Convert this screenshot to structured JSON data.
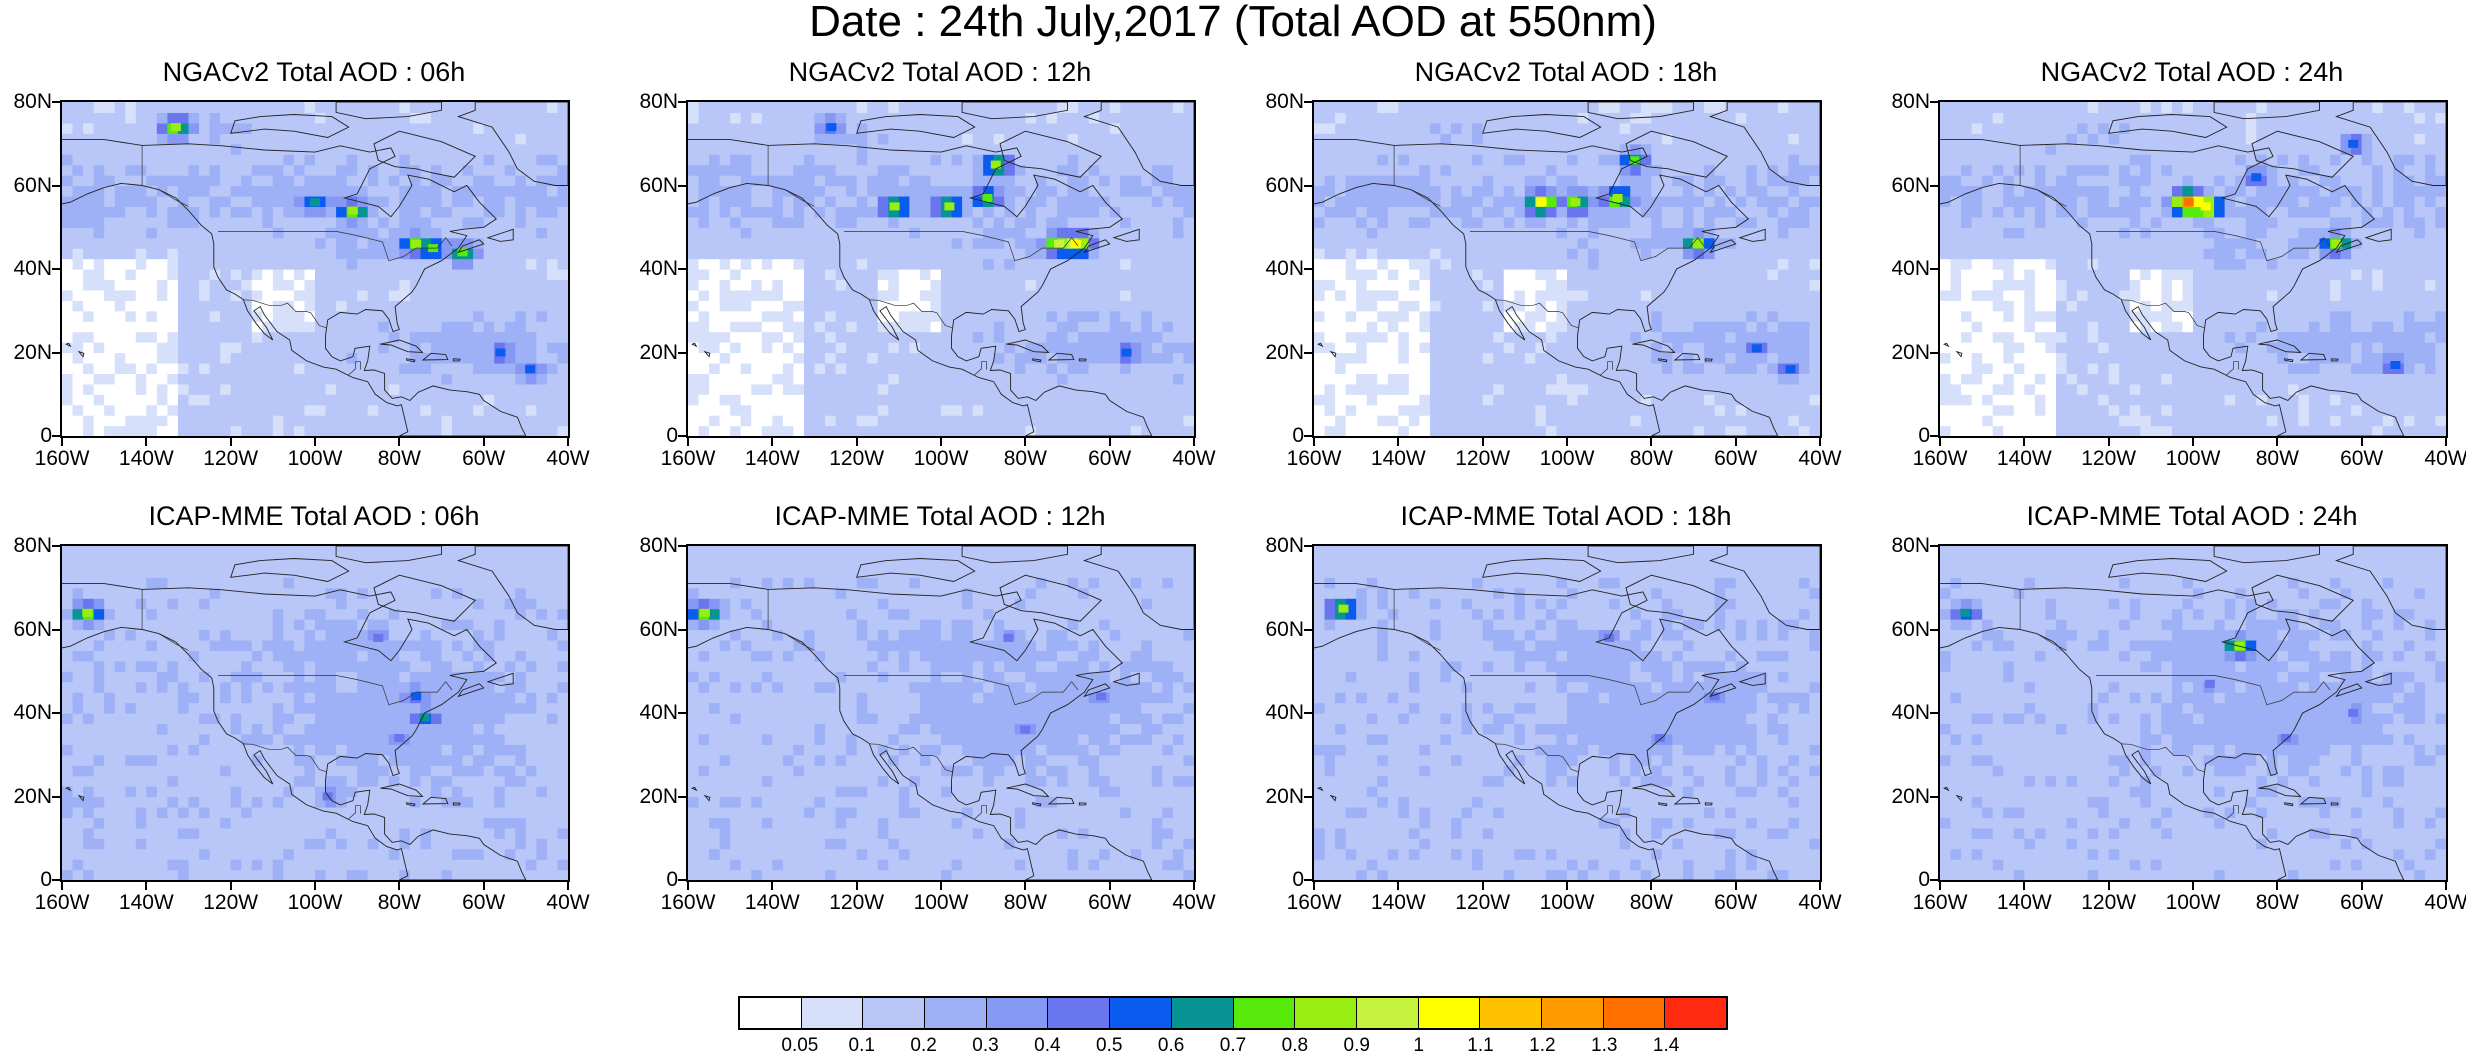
{
  "title": "Date : 24th July,2017 (Total AOD at 550nm)",
  "panels": [
    {
      "title": "NGACv2 Total AOD : 06h",
      "model": "NGACv2",
      "hotspots": [
        {
          "lon": -133,
          "lat": 74,
          "aod": 0.8
        },
        {
          "lon": -100,
          "lat": 56,
          "aod": 0.6
        },
        {
          "lon": -91,
          "lat": 54,
          "aod": 0.8
        },
        {
          "lon": -76,
          "lat": 46,
          "aod": 0.8
        },
        {
          "lon": -72,
          "lat": 45,
          "aod": 0.7
        },
        {
          "lon": -65,
          "lat": 44,
          "aod": 0.7
        },
        {
          "lon": -56,
          "lat": 20,
          "aod": 0.5
        },
        {
          "lon": -49,
          "lat": 16,
          "aod": 0.5
        }
      ]
    },
    {
      "title": "NGACv2 Total AOD : 12h",
      "model": "NGACv2",
      "hotspots": [
        {
          "lon": -126,
          "lat": 74,
          "aod": 0.5
        },
        {
          "lon": -111,
          "lat": 55,
          "aod": 0.8
        },
        {
          "lon": -98,
          "lat": 55,
          "aod": 0.8
        },
        {
          "lon": -89,
          "lat": 57,
          "aod": 0.7
        },
        {
          "lon": -87,
          "lat": 65,
          "aod": 0.8
        },
        {
          "lon": -72,
          "lat": 46,
          "aod": 0.9
        },
        {
          "lon": -68,
          "lat": 46,
          "aod": 1.0
        },
        {
          "lon": -56,
          "lat": 20,
          "aod": 0.5
        }
      ]
    },
    {
      "title": "NGACv2 Total AOD : 18h",
      "model": "NGACv2",
      "hotspots": [
        {
          "lon": -106,
          "lat": 56,
          "aod": 1.0
        },
        {
          "lon": -98,
          "lat": 56,
          "aod": 0.8
        },
        {
          "lon": -88,
          "lat": 57,
          "aod": 0.8
        },
        {
          "lon": -84,
          "lat": 66,
          "aod": 0.7
        },
        {
          "lon": -69,
          "lat": 46,
          "aod": 0.8
        },
        {
          "lon": -55,
          "lat": 21,
          "aod": 0.5
        },
        {
          "lon": -47,
          "lat": 16,
          "aod": 0.5
        }
      ]
    },
    {
      "title": "NGACv2 Total AOD : 24h",
      "model": "NGACv2",
      "hotspots": [
        {
          "lon": -101,
          "lat": 56,
          "aod": 1.3
        },
        {
          "lon": -97,
          "lat": 55,
          "aod": 1.0
        },
        {
          "lon": -85,
          "lat": 62,
          "aod": 0.5
        },
        {
          "lon": -66,
          "lat": 46,
          "aod": 0.8
        },
        {
          "lon": -62,
          "lat": 70,
          "aod": 0.5
        },
        {
          "lon": -52,
          "lat": 17,
          "aod": 0.5
        }
      ]
    },
    {
      "title": "ICAP-MME Total AOD : 06h",
      "model": "ICAP-MME",
      "hotspots": [
        {
          "lon": -154,
          "lat": 64,
          "aod": 0.8
        },
        {
          "lon": -85,
          "lat": 58,
          "aod": 0.4
        },
        {
          "lon": -76,
          "lat": 44,
          "aod": 0.5
        },
        {
          "lon": -74,
          "lat": 39,
          "aod": 0.6
        },
        {
          "lon": -80,
          "lat": 34,
          "aod": 0.4
        },
        {
          "lon": -97,
          "lat": 20,
          "aod": 0.4
        }
      ]
    },
    {
      "title": "ICAP-MME Total AOD : 12h",
      "model": "ICAP-MME",
      "hotspots": [
        {
          "lon": -156,
          "lat": 64,
          "aod": 0.8
        },
        {
          "lon": -84,
          "lat": 58,
          "aod": 0.4
        },
        {
          "lon": -80,
          "lat": 36,
          "aod": 0.4
        },
        {
          "lon": -62,
          "lat": 44,
          "aod": 0.4
        }
      ]
    },
    {
      "title": "ICAP-MME Total AOD : 18h",
      "model": "ICAP-MME",
      "hotspots": [
        {
          "lon": -153,
          "lat": 65,
          "aod": 0.8
        },
        {
          "lon": -90,
          "lat": 58,
          "aod": 0.4
        },
        {
          "lon": -78,
          "lat": 34,
          "aod": 0.4
        },
        {
          "lon": -65,
          "lat": 44,
          "aod": 0.4
        }
      ]
    },
    {
      "title": "ICAP-MME Total AOD : 24h",
      "model": "ICAP-MME",
      "hotspots": [
        {
          "lon": -154,
          "lat": 64,
          "aod": 0.6
        },
        {
          "lon": -89,
          "lat": 56,
          "aod": 0.8
        },
        {
          "lon": -96,
          "lat": 47,
          "aod": 0.4
        },
        {
          "lon": -78,
          "lat": 34,
          "aod": 0.4
        },
        {
          "lon": -62,
          "lat": 40,
          "aod": 0.4
        }
      ]
    }
  ],
  "axes": {
    "lat_ticks": [
      "80N",
      "60N",
      "40N",
      "20N",
      "0"
    ],
    "lat_values": [
      80,
      60,
      40,
      20,
      0
    ],
    "lon_ticks": [
      "160W",
      "140W",
      "120W",
      "100W",
      "80W",
      "60W",
      "40W"
    ],
    "lon_values": [
      -160,
      -140,
      -120,
      -100,
      -80,
      -60,
      -40
    ],
    "lon_range": [
      -160,
      -40
    ],
    "lat_range": [
      0,
      80
    ]
  },
  "colorbar": {
    "labels": [
      "0.05",
      "0.1",
      "0.2",
      "0.3",
      "0.4",
      "0.5",
      "0.6",
      "0.7",
      "0.8",
      "0.9",
      "1",
      "1.1",
      "1.2",
      "1.3",
      "1.4"
    ],
    "colors": [
      "#ffffff",
      "#d6e0fb",
      "#b8c6f8",
      "#9eb0f6",
      "#8598f3",
      "#6a76ee",
      "#0a5cf0",
      "#089494",
      "#58ea0a",
      "#98ee10",
      "#c6f43e",
      "#ffff00",
      "#ffc200",
      "#ff9a00",
      "#ff7000",
      "#ff2a10"
    ]
  }
}
